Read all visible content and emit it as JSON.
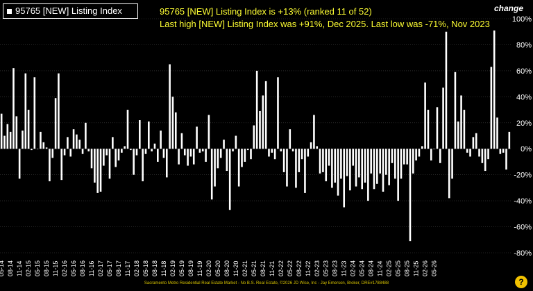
{
  "legend": {
    "label": "95765 [NEW] Listing Index"
  },
  "headline": {
    "line1": "95765 [NEW] Listing Index is +13% (ranked 11 of 52)",
    "line2": "Last high [NEW] Listing Index was +91%, Dec 2025. Last low was -71%, Nov 2023"
  },
  "change_label": "change",
  "footer": "Sacramento Metro Residential Real Estate Market - No B.S. Real Estate, ©2026 JD Wise, Inc - Jay Emerson, Broker, DRE#1788488",
  "colors": {
    "background": "#000000",
    "bars": "#ffffff",
    "headline": "#ffff33"
  },
  "chart_data": {
    "type": "bar",
    "ylim": [
      -80,
      100
    ],
    "y_ticks": [
      -80,
      -60,
      -40,
      -20,
      0,
      20,
      40,
      60,
      80,
      100
    ],
    "y_tick_labels": [
      "-80%",
      "-60%",
      "-40%",
      "-20%",
      "0%",
      "20%",
      "40%",
      "60%",
      "80%",
      "100%"
    ],
    "x_tick_labels": [
      "05-14",
      "08-14",
      "11-14",
      "02-15",
      "05-15",
      "08-15",
      "11-15",
      "02-16",
      "05-16",
      "08-16",
      "11-16",
      "02-17",
      "05-17",
      "08-17",
      "11-17",
      "02-18",
      "05-18",
      "08-18",
      "11-18",
      "02-19",
      "05-19",
      "08-19",
      "11-19",
      "02-20",
      "05-20",
      "08-20",
      "11-20",
      "02-21",
      "05-21",
      "08-21",
      "11-21",
      "02-22",
      "05-22",
      "08-22",
      "11-22",
      "02-23",
      "05-23",
      "08-23",
      "11-23",
      "02-24",
      "05-24",
      "08-24",
      "11-24",
      "02-25",
      "05-25",
      "08-25",
      "11-25",
      "02-26",
      "05-26"
    ],
    "tick_every": 3,
    "values": [
      27,
      10,
      19,
      13,
      62,
      25,
      -23,
      14,
      58,
      30,
      -1,
      55,
      0,
      13,
      5,
      1,
      -25,
      -7,
      39,
      58,
      -24,
      -5,
      9,
      -6,
      15,
      11,
      7,
      -4,
      20,
      -2,
      -15,
      -26,
      -34,
      -33,
      -13,
      -5,
      -23,
      9,
      -14,
      -9,
      -3,
      2,
      30,
      -1,
      -20,
      -5,
      22,
      -25,
      -4,
      21,
      -2,
      4,
      -10,
      14,
      -7,
      -22,
      65,
      40,
      28,
      -12,
      12,
      -5,
      -13,
      -6,
      -12,
      17,
      -3,
      -2,
      -10,
      26,
      -39,
      -29,
      -15,
      -7,
      7,
      -17,
      -47,
      -2,
      10,
      -29,
      -14,
      -10,
      -1,
      -8,
      18,
      60,
      29,
      41,
      52,
      -6,
      -3,
      -8,
      55,
      -2,
      -18,
      -29,
      15,
      -2,
      -30,
      -18,
      -8,
      -34,
      -6,
      5,
      26,
      2,
      -19,
      -18,
      -25,
      -13,
      -30,
      -26,
      -36,
      -23,
      -45,
      -21,
      -32,
      -13,
      -29,
      -22,
      -31,
      -26,
      -40,
      -19,
      -31,
      -27,
      -19,
      -33,
      -20,
      -28,
      -11,
      -23,
      -40,
      -23,
      -12,
      -12,
      -71,
      -19,
      -9,
      -6,
      2,
      51,
      30,
      -9,
      0,
      32,
      -11,
      47,
      90,
      -38,
      -23,
      59,
      21,
      41,
      30,
      -3,
      -6,
      9,
      12,
      -6,
      -11,
      -17,
      -8,
      63,
      91,
      24,
      -4,
      -3,
      -16,
      13
    ]
  }
}
